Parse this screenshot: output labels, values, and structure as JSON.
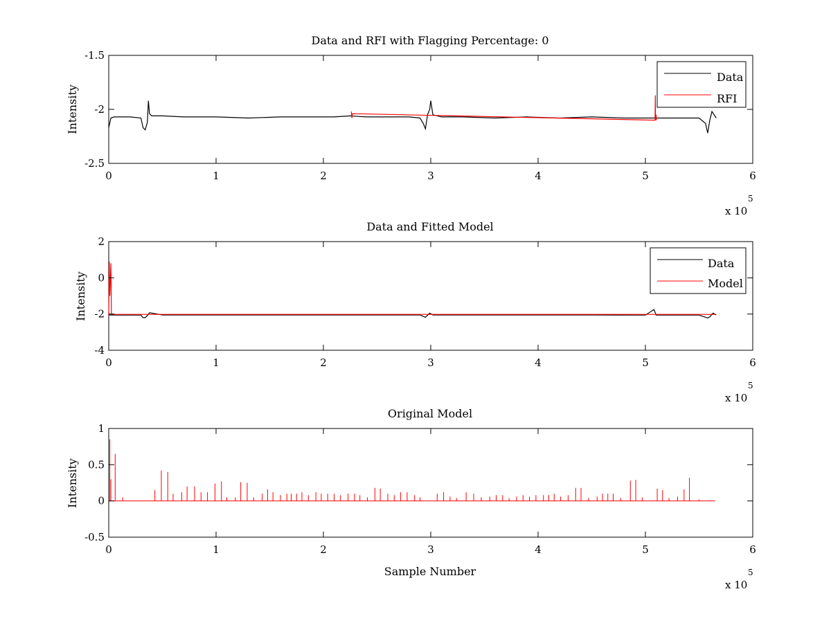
{
  "chart_data": [
    {
      "type": "line",
      "title": "Data and RFI with Flagging Percentage: 0",
      "ylabel": "Intensity",
      "xlabel": "",
      "xlim": [
        0,
        6
      ],
      "ylim": [
        -2.5,
        -1.5
      ],
      "y_reversed": true,
      "xticks": [
        "0",
        "1",
        "2",
        "3",
        "4",
        "5",
        "6"
      ],
      "yticks": [
        "-2.5",
        "-2",
        "-1.5"
      ],
      "x_multiplier": "x 10",
      "x_multiplier_exp": "5",
      "grid": false,
      "legend_position": "top-right",
      "series": [
        {
          "name": "Data",
          "color": "#000000",
          "x": [
            0,
            0.02,
            0.05,
            0.1,
            0.2,
            0.3,
            0.32,
            0.34,
            0.36,
            0.37,
            0.38,
            0.4,
            0.5,
            0.7,
            1.0,
            1.3,
            1.6,
            1.9,
            2.1,
            2.25,
            2.4,
            2.6,
            2.8,
            2.9,
            2.93,
            2.95,
            2.97,
            2.99,
            3.0,
            3.02,
            3.1,
            3.3,
            3.6,
            3.9,
            4.2,
            4.5,
            4.8,
            5.0,
            5.1,
            5.3,
            5.5,
            5.56,
            5.58,
            5.6,
            5.62,
            5.64,
            5.66
          ],
          "y": [
            -2.17,
            -2.08,
            -2.07,
            -2.07,
            -2.07,
            -2.08,
            -2.17,
            -2.19,
            -2.12,
            -1.92,
            -2.04,
            -2.06,
            -2.06,
            -2.07,
            -2.07,
            -2.08,
            -2.07,
            -2.07,
            -2.07,
            -2.06,
            -2.07,
            -2.07,
            -2.07,
            -2.08,
            -2.13,
            -2.18,
            -2.05,
            -2.0,
            -1.92,
            -2.05,
            -2.07,
            -2.07,
            -2.08,
            -2.07,
            -2.08,
            -2.07,
            -2.08,
            -2.08,
            -2.08,
            -2.08,
            -2.08,
            -2.13,
            -2.22,
            -2.1,
            -2.02,
            -2.05,
            -2.08
          ]
        },
        {
          "name": "RFI",
          "color": "#ff0000",
          "x": [
            2.26,
            2.265,
            2.27,
            5.09,
            5.092,
            5.094,
            5.1,
            5.102
          ],
          "y": [
            -2.02,
            -2.08,
            -2.04,
            -2.1,
            -1.87,
            -2.1,
            -2.05,
            -2.1
          ]
        }
      ]
    },
    {
      "type": "line",
      "title": "Data and Fitted Model",
      "ylabel": "Intensity",
      "xlabel": "",
      "xlim": [
        0,
        6
      ],
      "ylim": [
        -4,
        2
      ],
      "xticks": [
        "0",
        "1",
        "2",
        "3",
        "4",
        "5",
        "6"
      ],
      "yticks": [
        "-4",
        "-2",
        "0",
        "2"
      ],
      "x_multiplier": "x 10",
      "x_multiplier_exp": "5",
      "grid": false,
      "legend_position": "top-right",
      "series": [
        {
          "name": "Data",
          "color": "#000000",
          "x": [
            0,
            0.1,
            0.3,
            0.32,
            0.34,
            0.36,
            0.38,
            0.5,
            1.0,
            2.0,
            2.9,
            2.95,
            2.99,
            3.02,
            3.5,
            4.0,
            4.5,
            5.0,
            5.08,
            5.1,
            5.5,
            5.58,
            5.6,
            5.63,
            5.66
          ],
          "y": [
            -2.05,
            -2.06,
            -2.06,
            -2.2,
            -2.2,
            -2.08,
            -1.93,
            -2.05,
            -2.05,
            -2.05,
            -2.05,
            -2.18,
            -1.95,
            -2.05,
            -2.05,
            -2.05,
            -2.05,
            -2.06,
            -1.75,
            -2.06,
            -2.06,
            -2.22,
            -2.15,
            -1.95,
            -2.05
          ]
        },
        {
          "name": "Model",
          "color": "#ff0000",
          "x": [
            0,
            0.005,
            0.01,
            0.02,
            0.025,
            0.03,
            0.05,
            1.0,
            2.0,
            3.0,
            4.0,
            5.0,
            5.66
          ],
          "y": [
            -2.05,
            0.9,
            -1.0,
            0.8,
            -2.0,
            -2.02,
            -2.02,
            -2.02,
            -2.02,
            -2.02,
            -2.02,
            -2.02,
            -2.02
          ]
        }
      ]
    },
    {
      "type": "line",
      "title": "Original Model",
      "ylabel": "Intensity",
      "xlabel": "Sample Number",
      "xlim": [
        0,
        6
      ],
      "ylim": [
        -0.5,
        1
      ],
      "xticks": [
        "0",
        "1",
        "2",
        "3",
        "4",
        "5",
        "6"
      ],
      "yticks": [
        "-0.5",
        "0",
        "0.5",
        "1"
      ],
      "x_multiplier": "x 10",
      "x_multiplier_exp": "5",
      "grid": false,
      "series": [
        {
          "color": "#ff0000",
          "spikes": [
            [
              0.01,
              0.85
            ],
            [
              0.02,
              0.3
            ],
            [
              0.06,
              0.65
            ],
            [
              0.13,
              0.05
            ],
            [
              0.43,
              0.15
            ],
            [
              0.49,
              0.42
            ],
            [
              0.55,
              0.4
            ],
            [
              0.6,
              0.1
            ],
            [
              0.68,
              0.12
            ],
            [
              0.73,
              0.2
            ],
            [
              0.8,
              0.2
            ],
            [
              0.86,
              0.12
            ],
            [
              0.92,
              0.12
            ],
            [
              0.99,
              0.24
            ],
            [
              1.05,
              0.27
            ],
            [
              1.1,
              0.05
            ],
            [
              1.18,
              0.05
            ],
            [
              1.23,
              0.26
            ],
            [
              1.29,
              0.25
            ],
            [
              1.35,
              0.05
            ],
            [
              1.43,
              0.1
            ],
            [
              1.48,
              0.16
            ],
            [
              1.53,
              0.12
            ],
            [
              1.6,
              0.08
            ],
            [
              1.66,
              0.1
            ],
            [
              1.7,
              0.1
            ],
            [
              1.75,
              0.1
            ],
            [
              1.8,
              0.12
            ],
            [
              1.86,
              0.08
            ],
            [
              1.93,
              0.12
            ],
            [
              1.98,
              0.1
            ],
            [
              2.04,
              0.1
            ],
            [
              2.1,
              0.1
            ],
            [
              2.16,
              0.08
            ],
            [
              2.23,
              0.1
            ],
            [
              2.29,
              0.1
            ],
            [
              2.34,
              0.08
            ],
            [
              2.41,
              0.05
            ],
            [
              2.48,
              0.18
            ],
            [
              2.53,
              0.17
            ],
            [
              2.6,
              0.1
            ],
            [
              2.66,
              0.08
            ],
            [
              2.72,
              0.12
            ],
            [
              2.78,
              0.12
            ],
            [
              2.85,
              0.08
            ],
            [
              2.9,
              0.05
            ],
            [
              3.06,
              0.1
            ],
            [
              3.12,
              0.12
            ],
            [
              3.18,
              0.06
            ],
            [
              3.24,
              0.04
            ],
            [
              3.33,
              0.12
            ],
            [
              3.4,
              0.1
            ],
            [
              3.47,
              0.05
            ],
            [
              3.55,
              0.06
            ],
            [
              3.61,
              0.08
            ],
            [
              3.67,
              0.08
            ],
            [
              3.73,
              0.04
            ],
            [
              3.8,
              0.06
            ],
            [
              3.86,
              0.08
            ],
            [
              3.92,
              0.06
            ],
            [
              3.98,
              0.08
            ],
            [
              4.05,
              0.08
            ],
            [
              4.1,
              0.08
            ],
            [
              4.15,
              0.1
            ],
            [
              4.21,
              0.06
            ],
            [
              4.28,
              0.08
            ],
            [
              4.35,
              0.18
            ],
            [
              4.4,
              0.18
            ],
            [
              4.47,
              0.04
            ],
            [
              4.55,
              0.06
            ],
            [
              4.6,
              0.1
            ],
            [
              4.65,
              0.1
            ],
            [
              4.7,
              0.1
            ],
            [
              4.77,
              0.04
            ],
            [
              4.86,
              0.28
            ],
            [
              4.91,
              0.29
            ],
            [
              4.97,
              0.05
            ],
            [
              5.11,
              0.17
            ],
            [
              5.16,
              0.15
            ],
            [
              5.22,
              0.04
            ],
            [
              5.3,
              0.06
            ],
            [
              5.36,
              0.16
            ],
            [
              5.41,
              0.32
            ],
            [
              5.5,
              0.02
            ]
          ],
          "x_end": 5.65
        }
      ]
    }
  ]
}
